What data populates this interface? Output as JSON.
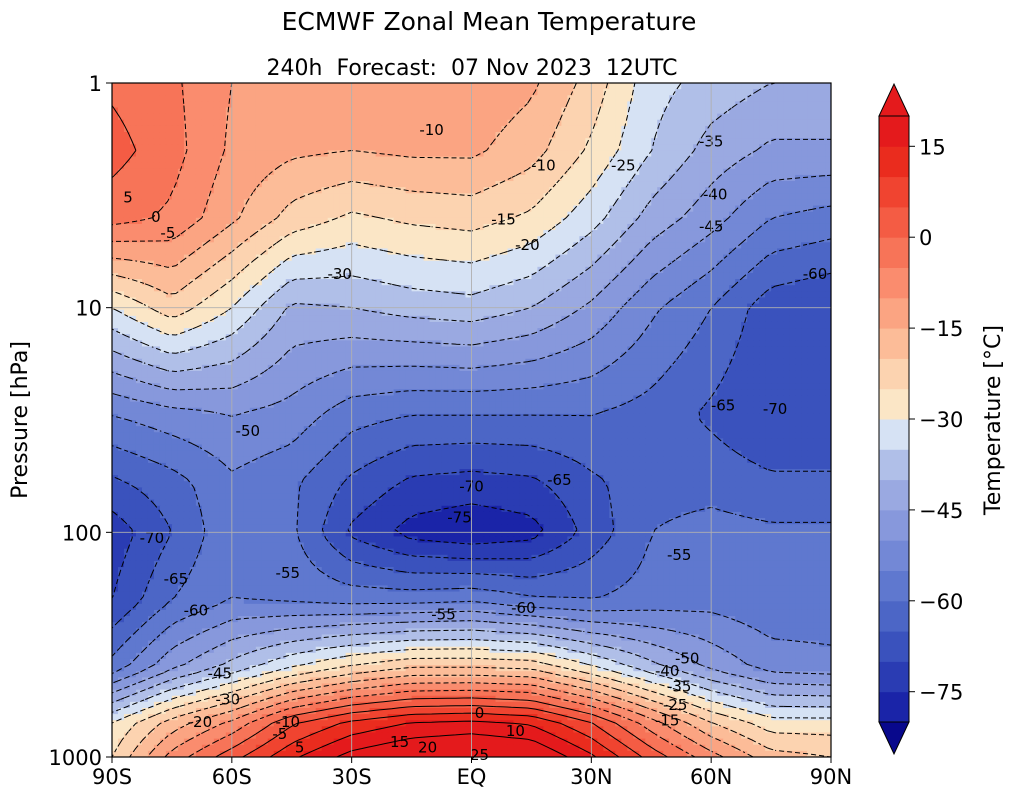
{
  "chart_data": {
    "type": "contour",
    "title": "ECMWF Zonal Mean Temperature",
    "subtitle": "240h  Forecast:  07 Nov 2023  12UTC",
    "xlabel": "",
    "ylabel": "Pressure [hPa]",
    "x_scale": "linear",
    "y_scale": "log",
    "y_inverted": true,
    "xlim": [
      -90,
      90
    ],
    "ylim": [
      1000,
      1
    ],
    "grid": true,
    "x_ticks": [
      {
        "value": -90,
        "label": "90S"
      },
      {
        "value": -60,
        "label": "60S"
      },
      {
        "value": -30,
        "label": "30S"
      },
      {
        "value": 0,
        "label": "EQ"
      },
      {
        "value": 30,
        "label": "30N"
      },
      {
        "value": 60,
        "label": "60N"
      },
      {
        "value": 90,
        "label": "90N"
      }
    ],
    "y_ticks": [
      {
        "value": 1,
        "label": "1"
      },
      {
        "value": 10,
        "label": "10"
      },
      {
        "value": 100,
        "label": "100"
      },
      {
        "value": 1000,
        "label": "1000"
      }
    ],
    "colorbar": {
      "label": "Temperature [°C]",
      "levels": [
        -80,
        -75,
        -70,
        -65,
        -60,
        -55,
        -50,
        -45,
        -40,
        -35,
        -30,
        -25,
        -20,
        -15,
        -10,
        -5,
        0,
        5,
        10,
        15,
        20
      ],
      "extend": "both",
      "ticks": [
        {
          "value": 15,
          "label": "15"
        },
        {
          "value": 0,
          "label": "0"
        },
        {
          "value": -15,
          "label": "−15"
        },
        {
          "value": -30,
          "label": "−30"
        },
        {
          "value": -45,
          "label": "−45"
        },
        {
          "value": -60,
          "label": "−60"
        },
        {
          "value": -75,
          "label": "−75"
        }
      ],
      "colors": [
        "#08088c",
        "#1a24a8",
        "#2a3cb3",
        "#3a52bd",
        "#4c66c6",
        "#5f78cf",
        "#7388d6",
        "#8798dc",
        "#9bab e2",
        "#b0bfe8",
        "#d6e2f4",
        "#fbe6c6",
        "#fcd3b0",
        "#fcbc98",
        "#fba482",
        "#fa8c6e",
        "#f77458",
        "#f45c44",
        "#f04430",
        "#ea2c1e",
        "#e41a1c",
        "#e41a1c"
      ]
    },
    "contour_labels": [
      {
        "text": "-10",
        "lat": -10,
        "p": 1.6
      },
      {
        "text": "-10",
        "lat": 18,
        "p": 2.3
      },
      {
        "text": "-25",
        "lat": 38,
        "p": 2.3
      },
      {
        "text": "-35",
        "lat": 60,
        "p": 1.8
      },
      {
        "text": "-40",
        "lat": 61,
        "p": 3.1
      },
      {
        "text": "-45",
        "lat": 60,
        "p": 4.3
      },
      {
        "text": "-60",
        "lat": 86,
        "p": 7.0
      },
      {
        "text": "5",
        "lat": -86,
        "p": 3.2
      },
      {
        "text": "0",
        "lat": -79,
        "p": 3.9
      },
      {
        "text": "-5",
        "lat": -76,
        "p": 4.6
      },
      {
        "text": "-15",
        "lat": 8,
        "p": 4.0
      },
      {
        "text": "-20",
        "lat": 14,
        "p": 5.2
      },
      {
        "text": "-30",
        "lat": -33,
        "p": 7.0
      },
      {
        "text": "-50",
        "lat": -56,
        "p": 35
      },
      {
        "text": "-65",
        "lat": 63,
        "p": 27
      },
      {
        "text": "-70",
        "lat": 76,
        "p": 28
      },
      {
        "text": "-70",
        "lat": 0,
        "p": 62
      },
      {
        "text": "-65",
        "lat": 22,
        "p": 58
      },
      {
        "text": "-75",
        "lat": -3,
        "p": 85
      },
      {
        "text": "-70",
        "lat": -80,
        "p": 105
      },
      {
        "text": "-65",
        "lat": -74,
        "p": 160
      },
      {
        "text": "-60",
        "lat": -69,
        "p": 220
      },
      {
        "text": "-55",
        "lat": -46,
        "p": 150
      },
      {
        "text": "-55",
        "lat": 52,
        "p": 125
      },
      {
        "text": "-55",
        "lat": -7,
        "p": 230
      },
      {
        "text": "-60",
        "lat": 13,
        "p": 215
      },
      {
        "text": "-45",
        "lat": -63,
        "p": 420
      },
      {
        "text": "-40",
        "lat": 49,
        "p": 410
      },
      {
        "text": "-50",
        "lat": 54,
        "p": 360
      },
      {
        "text": "-35",
        "lat": 52,
        "p": 480
      },
      {
        "text": "-30",
        "lat": -61,
        "p": 550
      },
      {
        "text": "-25",
        "lat": 51,
        "p": 580
      },
      {
        "text": "-20",
        "lat": -68,
        "p": 690
      },
      {
        "text": "-15",
        "lat": 49,
        "p": 680
      },
      {
        "text": "-10",
        "lat": -46,
        "p": 690
      },
      {
        "text": "-5",
        "lat": -48,
        "p": 780
      },
      {
        "text": "0",
        "lat": 2,
        "p": 630
      },
      {
        "text": "5",
        "lat": -43,
        "p": 900
      },
      {
        "text": "10",
        "lat": 11,
        "p": 760
      },
      {
        "text": "15",
        "lat": -18,
        "p": 850
      },
      {
        "text": "20",
        "lat": -11,
        "p": 900
      },
      {
        "text": "25",
        "lat": 2,
        "p": 970
      }
    ],
    "temperature_field": {
      "lat": [
        -90,
        -75,
        -60,
        -45,
        -30,
        -15,
        0,
        15,
        30,
        45,
        60,
        75,
        90
      ],
      "p": [
        1,
        2,
        4,
        10,
        30,
        60,
        100,
        200,
        400,
        700,
        1000
      ],
      "values_degC": [
        [
          -1,
          -4,
          -10,
          -11,
          -11,
          -11,
          -11,
          -14,
          -22,
          -33,
          -37,
          -40,
          -40
        ],
        [
          2,
          -3,
          -11,
          -14,
          -15,
          -14,
          -14,
          -18,
          -26,
          -35,
          -42,
          -46,
          -46
        ],
        [
          -3,
          -6,
          -14,
          -22,
          -26,
          -24,
          -23,
          -26,
          -33,
          -42,
          -48,
          -55,
          -57
        ],
        [
          -30,
          -22,
          -30,
          -41,
          -40,
          -38,
          -37,
          -40,
          -46,
          -54,
          -60,
          -68,
          -70
        ],
        [
          -55,
          -52,
          -50,
          -52,
          -58,
          -60,
          -60,
          -60,
          -60,
          -62,
          -66,
          -70,
          -70
        ],
        [
          -66,
          -62,
          -56,
          -59,
          -66,
          -71,
          -72,
          -71,
          -66,
          -62,
          -62,
          -64,
          -64
        ],
        [
          -73,
          -65,
          -56,
          -59,
          -71,
          -77,
          -79,
          -77,
          -68,
          -60,
          -58,
          -59,
          -59
        ],
        [
          -70,
          -60,
          -55,
          -56,
          -57,
          -57,
          -56,
          -59,
          -60,
          -58,
          -57,
          -59,
          -59
        ],
        [
          -58,
          -46,
          -38,
          -30,
          -24,
          -20,
          -20,
          -21,
          -29,
          -38,
          -46,
          -52,
          -53
        ],
        [
          -30,
          -18,
          -9,
          4,
          11,
          15,
          16,
          14,
          5,
          -8,
          -20,
          -28,
          -28
        ],
        [
          -25,
          -8,
          3,
          14,
          22,
          26,
          28,
          26,
          16,
          3,
          -8,
          -18,
          -20
        ]
      ]
    }
  }
}
